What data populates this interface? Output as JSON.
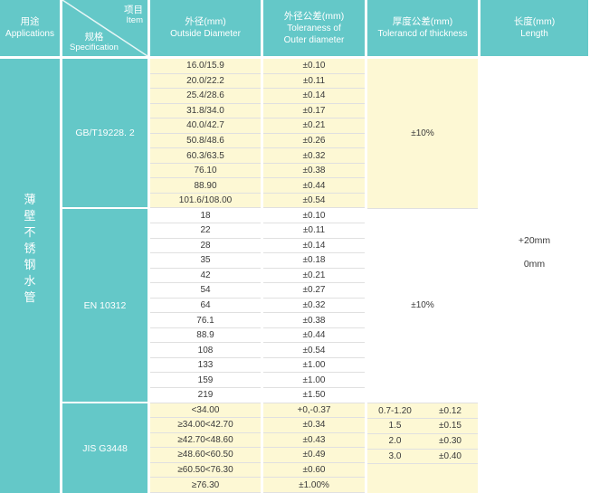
{
  "header": {
    "applications": {
      "zh": "用途",
      "en": "Applications"
    },
    "item_spec": {
      "item_zh": "项目",
      "item_en": "Item",
      "spec_zh": "规格",
      "spec_en": "Specification"
    },
    "outside_diameter": {
      "zh": "外径(mm)",
      "en": "Outside Diameter"
    },
    "od_tolerance": {
      "zh": "外径公差(mm)",
      "en_line1": "Toleraness of",
      "en_line2": "Outer diameter"
    },
    "thickness_tolerance": {
      "zh": "厚度公差(mm)",
      "en": "Tolerancd of thickness"
    },
    "length": {
      "zh": "长度(mm)",
      "en": "Length"
    }
  },
  "application": {
    "vertical_text": "薄壁不锈钢水管",
    "chars": [
      "薄",
      "壁",
      "不",
      "锈",
      "钢",
      "水",
      "管"
    ]
  },
  "sections": [
    {
      "standard": "GB/T19228. 2",
      "row_bg": "#fdf8d4",
      "thickness_merged": "±10%",
      "rows": [
        {
          "od": "16.0/15.9",
          "tol": "±0.10"
        },
        {
          "od": "20.0/22.2",
          "tol": "±0.11"
        },
        {
          "od": "25.4/28.6",
          "tol": "±0.14"
        },
        {
          "od": "31.8/34.0",
          "tol": "±0.17"
        },
        {
          "od": "40.0/42.7",
          "tol": "±0.21"
        },
        {
          "od": "50.8/48.6",
          "tol": "±0.26"
        },
        {
          "od": "60.3/63.5",
          "tol": "±0.32"
        },
        {
          "od": "76.10",
          "tol": "±0.38"
        },
        {
          "od": "88.90",
          "tol": "±0.44"
        },
        {
          "od": "101.6/108.00",
          "tol": "±0.54"
        }
      ]
    },
    {
      "standard": "EN 10312",
      "row_bg": "#ffffff",
      "thickness_merged": "±10%",
      "rows": [
        {
          "od": "18",
          "tol": "±0.10"
        },
        {
          "od": "22",
          "tol": "±0.11"
        },
        {
          "od": "28",
          "tol": "±0.14"
        },
        {
          "od": "35",
          "tol": "±0.18"
        },
        {
          "od": "42",
          "tol": "±0.21"
        },
        {
          "od": "54",
          "tol": "±0.27"
        },
        {
          "od": "64",
          "tol": "±0.32"
        },
        {
          "od": "76.1",
          "tol": "±0.38"
        },
        {
          "od": "88.9",
          "tol": "±0.44"
        },
        {
          "od": "108",
          "tol": "±0.54"
        },
        {
          "od": "133",
          "tol": "±1.00"
        },
        {
          "od": "159",
          "tol": "±1.00"
        },
        {
          "od": "219",
          "tol": "±1.50"
        }
      ]
    },
    {
      "standard": "JIS G3448",
      "row_bg": "#fdf8d4",
      "thickness_rows": [
        {
          "value": "0.7-1.20",
          "tol": "±0.12"
        },
        {
          "value": "1.5",
          "tol": "±0.15"
        },
        {
          "value": "2.0",
          "tol": "±0.30"
        },
        {
          "value": "3.0",
          "tol": "±0.40"
        }
      ],
      "rows": [
        {
          "od": "<34.00",
          "tol": "+0,-0.37"
        },
        {
          "od": "≥34.00<42.70",
          "tol": "±0.34"
        },
        {
          "od": "≥42.70<48.60",
          "tol": "±0.43"
        },
        {
          "od": "≥48.60<60.50",
          "tol": "±0.49"
        },
        {
          "od": "≥60.50<76.30",
          "tol": "±0.60"
        },
        {
          "od": "≥76.30",
          "tol": "±1.00%"
        }
      ]
    }
  ],
  "length_cell": {
    "line1": "+20mm",
    "line2": "0mm"
  },
  "colors": {
    "teal": "#64c8c8",
    "cream": "#fdf8d4",
    "row_line": "#e0e0e0",
    "text": "#3a3a3a",
    "header_text": "#ffffff"
  }
}
